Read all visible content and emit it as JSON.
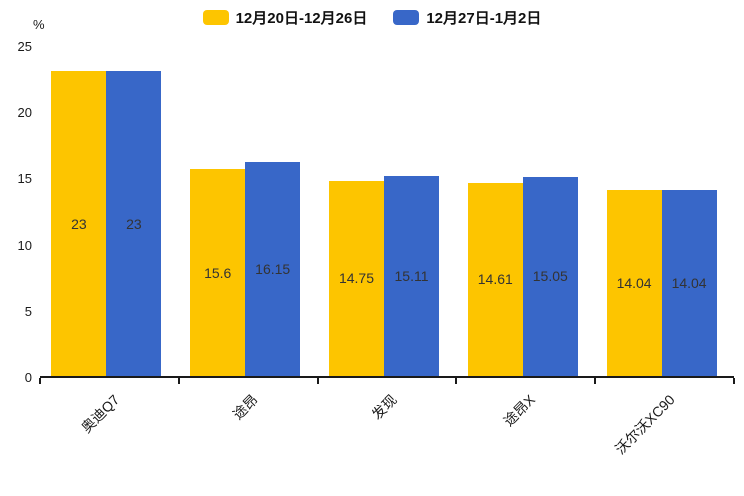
{
  "chart_data": {
    "type": "bar",
    "title": "",
    "xlabel": "",
    "ylabel": "%",
    "categories": [
      "奥迪Q7",
      "途昂",
      "发现",
      "途昂X",
      "沃尔沃XC90"
    ],
    "series": [
      {
        "name": "12月20日-12月26日",
        "color": "#FDC500",
        "values": [
          23,
          15.6,
          14.75,
          14.61,
          14.04
        ]
      },
      {
        "name": "12月27日-1月2日",
        "color": "#3867C8",
        "values": [
          23,
          16.15,
          15.11,
          15.05,
          14.04
        ]
      }
    ],
    "ylim": [
      0,
      25
    ],
    "yticks": [
      0,
      5,
      10,
      15,
      20,
      25
    ],
    "grid": false,
    "legend_position": "top",
    "value_labels_shown": true,
    "value_label_color": "#333333",
    "axis_color": "#1a1a1a",
    "background": "#ffffff"
  }
}
